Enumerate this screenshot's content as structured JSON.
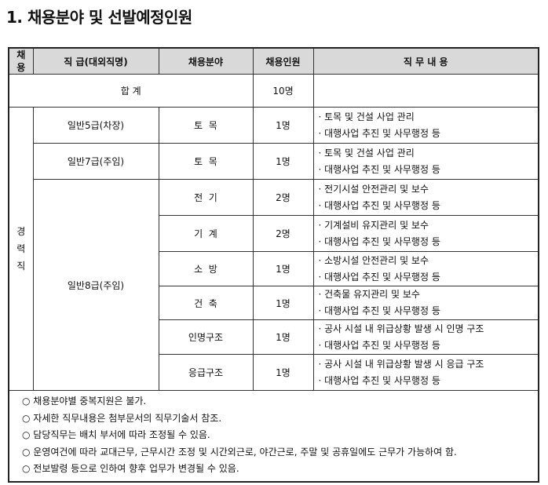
{
  "title": "1. 채용분야 및 선발예정인원",
  "headers": {
    "type": "채\n용",
    "grade": "직 급(대외직명)",
    "field": "채용분야",
    "count": "채용인원",
    "duty": "직 무 내 용"
  },
  "total": {
    "label": "합 계",
    "count": "10명"
  },
  "group": "경\n력\n직",
  "rows": [
    {
      "grade": "일반5급(차장)",
      "field": "토  목",
      "count": "1명",
      "duties": [
        "· 토목 및 건설 사업 관리",
        "· 대행사업 추진 및 사무행정 등"
      ]
    },
    {
      "grade": "일반7급(주임)",
      "field": "토  목",
      "count": "1명",
      "duties": [
        "· 토목 및 건설 사업 관리",
        "· 대행사업 추진 및 사무행정 등"
      ]
    },
    {
      "grade": "일반8급(주임)",
      "field": "전  기",
      "count": "2명",
      "duties": [
        "· 전기시설 안전관리 및 보수",
        "· 대행사업 추진 및 사무행정 등"
      ]
    },
    {
      "field": "기  계",
      "count": "2명",
      "duties": [
        "· 기계설비 유지관리 및 보수",
        "· 대행사업 추진 및 사무행정 등"
      ]
    },
    {
      "field": "소  방",
      "count": "1명",
      "duties": [
        "· 소방시설 안전관리 및 보수",
        "· 대행사업 추진 및 사무행정 등"
      ]
    },
    {
      "field": "건  축",
      "count": "1명",
      "duties": [
        "· 건축물 유지관리 및 보수",
        "· 대행사업 추진 및 사무행정 등"
      ]
    },
    {
      "field": "인명구조",
      "count": "1명",
      "duties": [
        "· 공사 시설 내 위급상황 발생 시 인명 구조",
        "· 대행사업 추진 및 사무행정 등"
      ]
    },
    {
      "field": "응급구조",
      "count": "1명",
      "duties": [
        "· 공사 시설 내 위급상황 발생 시 응급 구조",
        "· 대행사업 추진 및 사무행정 등"
      ]
    }
  ],
  "notes": [
    "○ 채용분야별 중복지원은 불가.",
    "○ 자세한 직무내용은 첨부문서의 직무기술서 참조.",
    "○ 담당직무는 배치 부서에 따라 조정될 수 있음.",
    "○ 운영여건에 따라 교대근무, 근무시간 조정 및 시간외근로, 야간근로, 주말 및 공휴일에도 근무가 가능하여 함.",
    "○ 전보발령 등으로 인하여 향후 업무가 변경될 수 있음."
  ]
}
